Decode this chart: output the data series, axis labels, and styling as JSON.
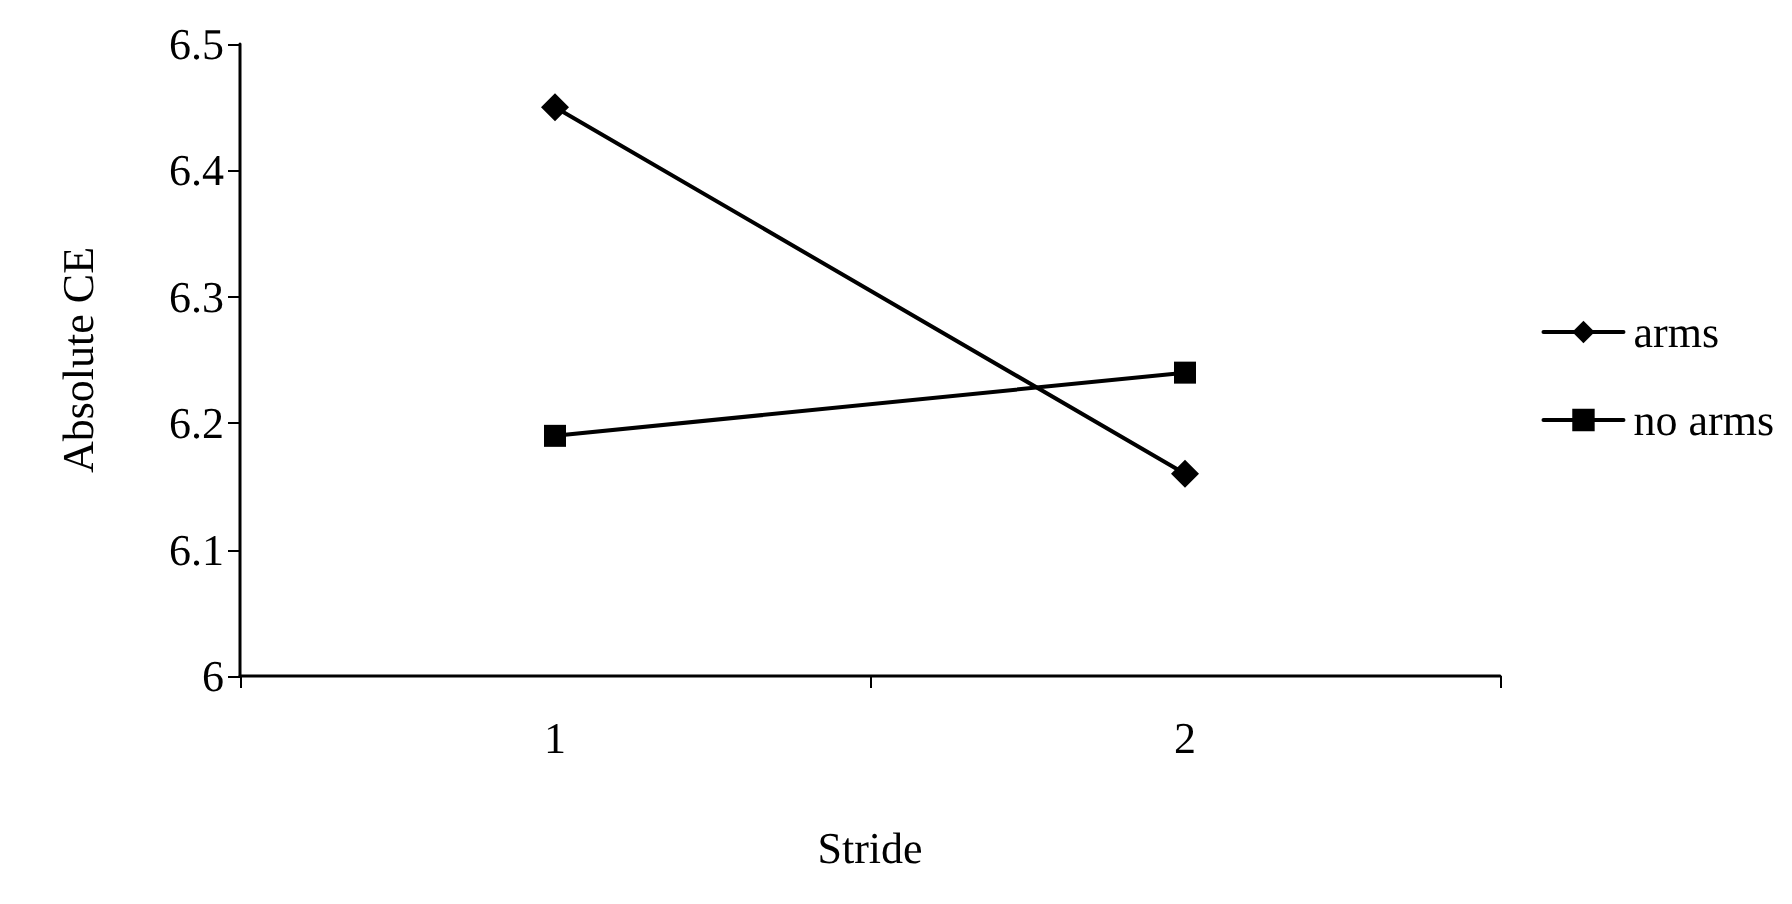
{
  "chart_data": {
    "type": "line",
    "xlabel": "Stride",
    "ylabel": "Absolute CE",
    "categories": [
      "1",
      "2"
    ],
    "series": [
      {
        "name": "arms",
        "color": "#000000",
        "values": [
          6.45,
          6.16
        ],
        "marker": "diamond"
      },
      {
        "name": "no arms",
        "color": "#000000",
        "values": [
          6.19,
          6.24
        ],
        "marker": "square"
      }
    ],
    "ylim": [
      6,
      6.5
    ],
    "yticks": [
      6,
      6.1,
      6.2,
      6.3,
      6.4,
      6.5
    ],
    "grid": false,
    "legend": "right",
    "line_style": "solid"
  }
}
